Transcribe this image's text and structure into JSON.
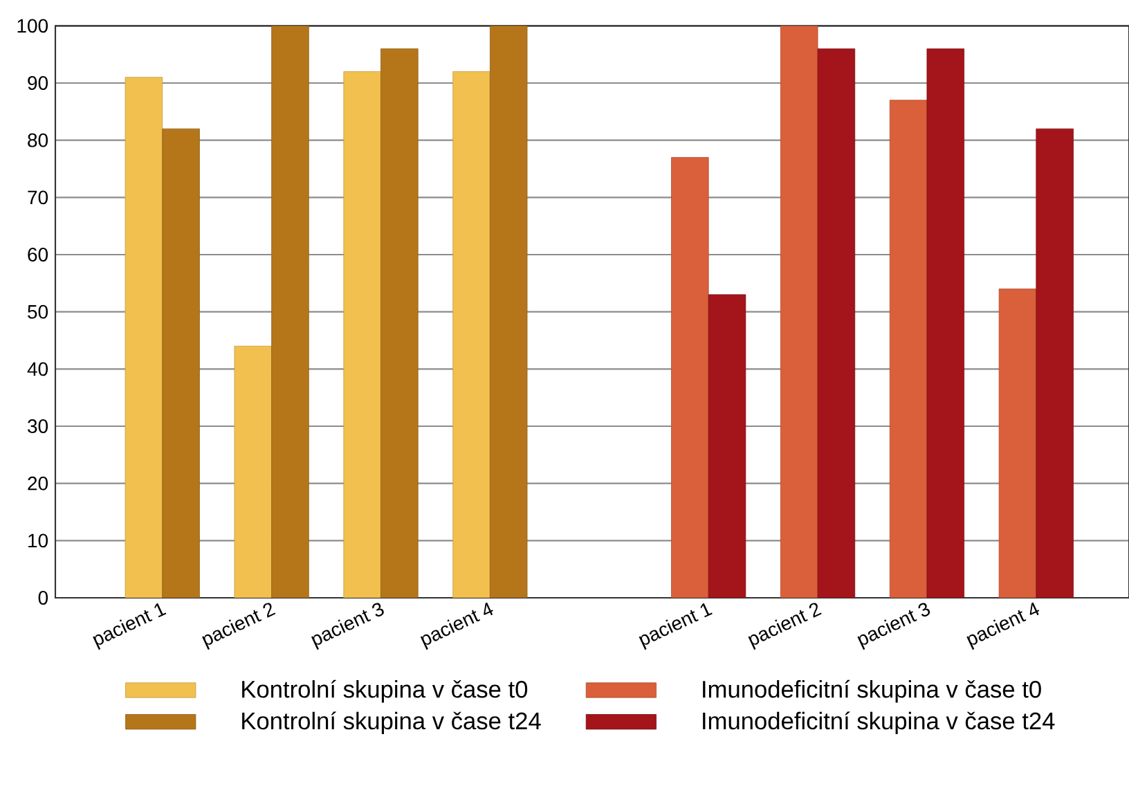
{
  "chart_data": {
    "type": "bar",
    "categories": [
      "pacient 1",
      "pacient 2",
      "pacient 3",
      "pacient 4",
      null,
      "pacient 1",
      "pacient 2",
      "pacient 3",
      "pacient 4"
    ],
    "series": [
      {
        "name": "Kontrolní skupina v čase t0",
        "color": "#f2c04f",
        "values": [
          91,
          44,
          92,
          92,
          null,
          null,
          null,
          null,
          null
        ]
      },
      {
        "name": "Kontrolní skupina v čase t24",
        "color": "#b5761a",
        "values": [
          82,
          100,
          96,
          100,
          null,
          null,
          null,
          null,
          null
        ]
      },
      {
        "name": "Imunodeficitní skupina v čase t0",
        "color": "#d9603b",
        "values": [
          null,
          null,
          null,
          null,
          null,
          77,
          100,
          87,
          54
        ]
      },
      {
        "name": "Imunodeficitní skupina v čase t24",
        "color": "#a3141b",
        "values": [
          null,
          null,
          null,
          null,
          null,
          53,
          96,
          96,
          82
        ]
      }
    ],
    "ylim": [
      0,
      100
    ],
    "yticks": [
      0,
      10,
      20,
      30,
      40,
      50,
      60,
      70,
      80,
      90,
      100
    ],
    "grid": "y",
    "legend": "bottom"
  }
}
